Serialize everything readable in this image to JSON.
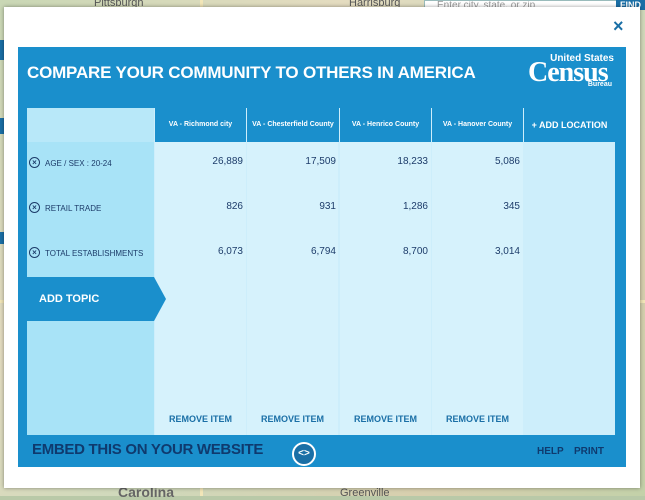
{
  "map": {
    "labels": [
      "Pittsburgh",
      "Harrisburg",
      "Carolina",
      "Greenville"
    ],
    "search_placeholder": "Enter city, state, or zip",
    "find_label": "FIND"
  },
  "modal": {
    "title": "COMPARE YOUR COMMUNITY TO OTHERS IN AMERICA",
    "close_icon": "×",
    "logo": {
      "top": "United States",
      "main": "Census",
      "bottom": "Bureau"
    },
    "add_location_label": "+ ADD LOCATION",
    "add_topic_label": "ADD TOPIC",
    "remove_label": "REMOVE ITEM",
    "embed_label": "EMBED THIS ON YOUR WEBSITE",
    "embed_icon": "<>",
    "help_label": "HELP",
    "print_label": "PRINT",
    "locations": [
      "VA - Richmond city",
      "VA - Chesterfield County",
      "VA - Henrico County",
      "VA - Hanover County"
    ],
    "topics": [
      {
        "label": "AGE / SEX : 20-24",
        "values": [
          "26,889",
          "17,509",
          "18,233",
          "5,086"
        ]
      },
      {
        "label": "RETAIL TRADE",
        "values": [
          "826",
          "931",
          "1,286",
          "345"
        ]
      },
      {
        "label": "TOTAL ESTABLISHMENTS",
        "values": [
          "6,073",
          "6,794",
          "8,700",
          "3,014"
        ]
      }
    ]
  },
  "colors": {
    "primary": "#1a8fcc",
    "dark_text": "#1d3c6a",
    "light_bg": "#cdeefb"
  }
}
